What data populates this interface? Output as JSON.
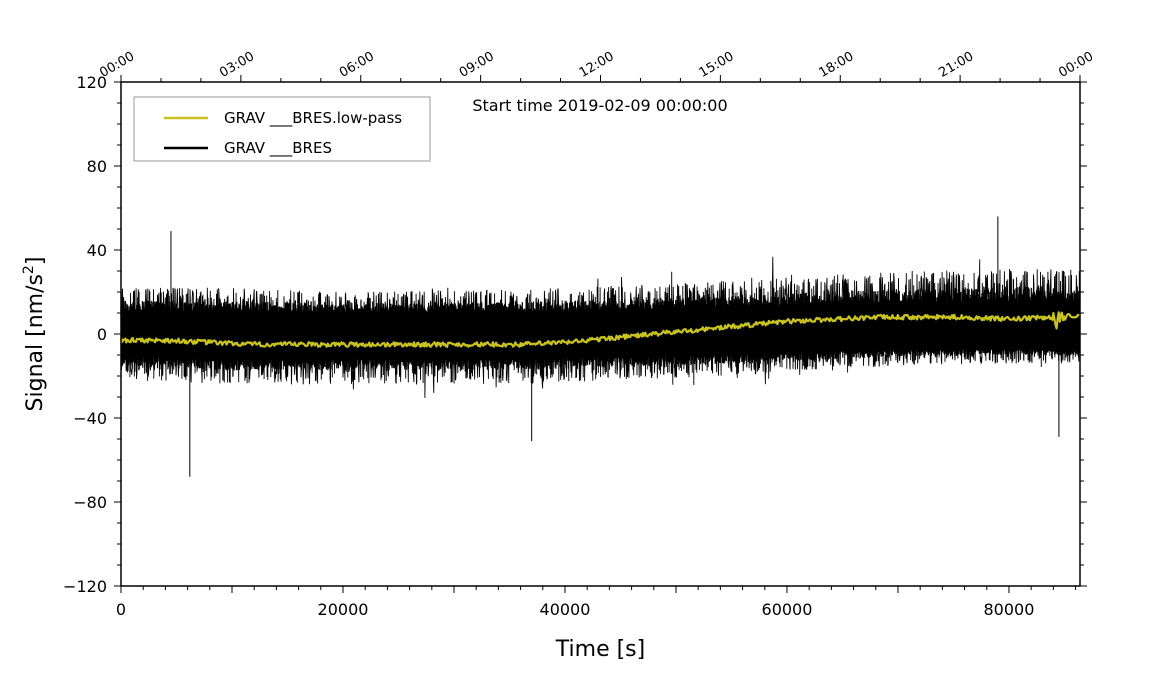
{
  "chart_data": {
    "type": "line",
    "title": "",
    "annotation": "Start time 2019-02-09 00:00:00",
    "xlabel": "Time [s]",
    "ylabel_main": "Signal [nm/s",
    "ylabel_sup": "2",
    "ylabel_close": "]",
    "xlim": [
      0,
      86400
    ],
    "ylim": [
      -120,
      120
    ],
    "x_ticks": [
      0,
      20000,
      40000,
      60000,
      80000
    ],
    "x_tick_labels": [
      "0",
      "20000",
      "40000",
      "60000",
      "80000"
    ],
    "y_ticks": [
      -120,
      -80,
      -40,
      0,
      40,
      80,
      120
    ],
    "y_tick_labels": [
      "−120",
      "−80",
      "−40",
      "0",
      "40",
      "80",
      "120"
    ],
    "top_axis_ticks": [
      0,
      10800,
      21600,
      32400,
      43200,
      54000,
      64800,
      75600,
      86400
    ],
    "top_axis_labels": [
      "00:00",
      "03:00",
      "06:00",
      "09:00",
      "12:00",
      "15:00",
      "18:00",
      "21:00",
      "00:00"
    ],
    "legend": {
      "position": "top-left"
    },
    "series": [
      {
        "name": "GRAV ___BRES.low-pass",
        "color": "#c8c31e",
        "x": [
          0,
          4000,
          8000,
          12000,
          16000,
          20000,
          24000,
          28000,
          32000,
          36000,
          40000,
          44000,
          48000,
          52000,
          56000,
          60000,
          64000,
          68000,
          72000,
          76000,
          80000,
          84000,
          86400
        ],
        "values": [
          -3,
          -3,
          -4,
          -5,
          -5,
          -5,
          -5,
          -5,
          -5,
          -5,
          -4,
          -2,
          0,
          2,
          4,
          6,
          7,
          8,
          8,
          8,
          7,
          8,
          9
        ]
      },
      {
        "name": "GRAV ___BRES",
        "color": "#000000",
        "envelope_x": [
          0,
          10000,
          20000,
          30000,
          40000,
          50000,
          60000,
          70000,
          80000,
          86400
        ],
        "envelope_upper": [
          22,
          22,
          20,
          21,
          22,
          24,
          27,
          30,
          31,
          31
        ],
        "envelope_lower": [
          -22,
          -24,
          -24,
          -24,
          -23,
          -21,
          -18,
          -15,
          -14,
          -14
        ],
        "peaks": [
          {
            "x": 4500,
            "y": 49
          },
          {
            "x": 6200,
            "y": -68
          },
          {
            "x": 37000,
            "y": -51
          },
          {
            "x": 79000,
            "y": 56
          },
          {
            "x": 84500,
            "y": -49
          }
        ]
      }
    ]
  }
}
